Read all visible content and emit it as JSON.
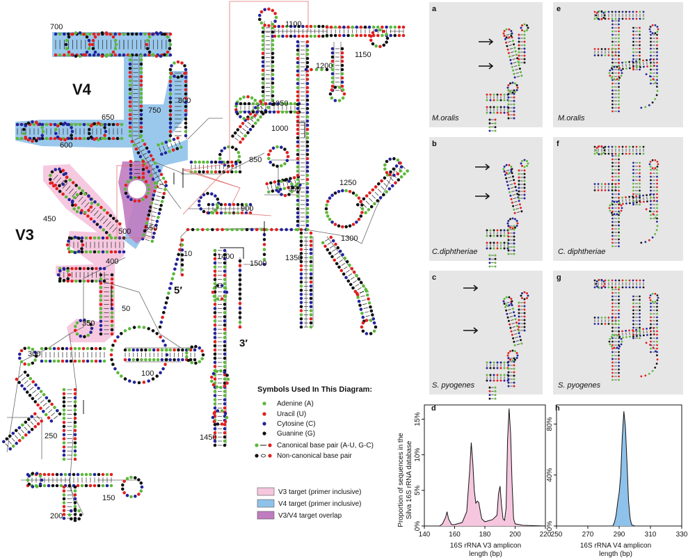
{
  "main_diagram": {
    "region_labels": {
      "v4": "V4",
      "v3": "V3"
    },
    "end_labels": {
      "five_prime": "5′",
      "three_prime": "3′"
    },
    "position_labels": [
      "700",
      "650",
      "600",
      "750",
      "800",
      "450",
      "500",
      "550",
      "400",
      "350",
      "50",
      "300",
      "250",
      "200",
      "150",
      "100",
      "10",
      "1100",
      "1150",
      "1200",
      "1050",
      "1000",
      "850",
      "900",
      "950",
      "1250",
      "1300",
      "1350",
      "1400",
      "1500",
      "1450"
    ]
  },
  "legend": {
    "title": "Symbols Used In This Diagram:",
    "items": [
      {
        "label": "Adenine (A)",
        "color": "#5cb83a"
      },
      {
        "label": "Uracil (U)",
        "color": "#e02020"
      },
      {
        "label": "Cytosine (C)",
        "color": "#23239a"
      },
      {
        "label": "Guanine (G)",
        "color": "#111111"
      }
    ],
    "pairs": [
      {
        "label": "Canonical base pair (A-U, G-C)"
      },
      {
        "label": "Non-canonical base pair"
      }
    ],
    "targets": [
      {
        "label": "V3 target (primer inclusive)",
        "color": "#f5c6de"
      },
      {
        "label": "V4 target (primer inclusive)",
        "color": "#8fc2ea"
      },
      {
        "label": "V3/V4 target overlap",
        "color": "#c07cc0"
      }
    ]
  },
  "panels": [
    {
      "letter": "a",
      "species": "M.oralis"
    },
    {
      "letter": "b",
      "species": "C.diphtheriae"
    },
    {
      "letter": "c",
      "species": "S. pyogenes"
    },
    {
      "letter": "e",
      "species": "M.oralis"
    },
    {
      "letter": "f",
      "species": "C. diphtheriae"
    },
    {
      "letter": "g",
      "species": "S. pyogenes"
    }
  ],
  "chart_data": [
    {
      "panel": "d",
      "type": "area",
      "ylabel": "Proportion of sequences in the Silva 16S rRNA database",
      "xlabel": "16S rRNA V3 amplicon length (bp)",
      "xlim": [
        140,
        220
      ],
      "ylim": [
        0,
        17
      ],
      "xticks": [
        "140",
        "160",
        "180",
        "200",
        "220"
      ],
      "yticks": [
        "0%",
        "5%",
        "10%",
        "15%"
      ],
      "x": [
        140,
        150,
        152,
        154,
        155,
        156,
        158,
        160,
        165,
        168,
        170,
        171,
        172,
        173,
        174,
        175,
        176,
        177,
        178,
        180,
        185,
        188,
        189,
        190,
        191,
        192,
        193,
        194,
        195,
        196,
        197,
        198,
        199,
        200,
        205,
        220
      ],
      "y": [
        0,
        0,
        0.3,
        1.2,
        2.0,
        1.0,
        0.2,
        0.2,
        0.5,
        2.0,
        8.0,
        11.7,
        9.0,
        5.0,
        3.2,
        3.5,
        3.3,
        2.0,
        1.0,
        0.6,
        0.9,
        1.5,
        4.5,
        5.6,
        3.0,
        1.0,
        0.8,
        2.5,
        12.0,
        16.5,
        13.0,
        6.0,
        1.0,
        0.3,
        0.1,
        0
      ],
      "fill": "#f5c6de"
    },
    {
      "panel": "h",
      "type": "area",
      "ylabel": "",
      "xlabel": "16S rRNA V4 amplicon length (bp)",
      "xlim": [
        250,
        330
      ],
      "ylim": [
        0,
        95
      ],
      "xticks": [
        "250",
        "270",
        "290",
        "310",
        "330"
      ],
      "yticks": [
        "0%",
        "40%",
        "80%"
      ],
      "x": [
        250,
        286,
        287,
        288,
        289,
        290,
        291,
        292,
        293,
        294,
        295,
        296,
        297,
        298,
        300,
        330
      ],
      "y": [
        0,
        0,
        3,
        8,
        18,
        26,
        40,
        70,
        90,
        78,
        50,
        20,
        6,
        1,
        0,
        0
      ],
      "fill": "#8fc2ea"
    }
  ]
}
